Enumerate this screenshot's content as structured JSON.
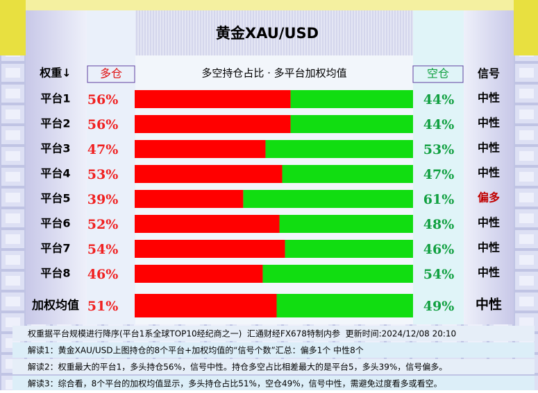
{
  "title": "黄金XAU/USD",
  "headers": {
    "weight": "权重↓",
    "subtitle": "多空持仓占比 · 多平台加权均值",
    "signal": "信号"
  },
  "chart_data": {
    "type": "bar",
    "stacked": true,
    "orientation": "horizontal",
    "categories": [
      "平台1",
      "平台2",
      "平台3",
      "平台4",
      "平台5",
      "平台6",
      "平台7",
      "平台8",
      "加权均值"
    ],
    "series": [
      {
        "name": "多仓",
        "color": "#ff0000",
        "values": [
          56,
          56,
          47,
          53,
          39,
          52,
          54,
          46,
          51
        ],
        "value_labels": [
          "56%",
          "56%",
          "47%",
          "53%",
          "39%",
          "52%",
          "54%",
          "46%",
          "51%"
        ]
      },
      {
        "name": "空仓",
        "color": "#11dd11",
        "values": [
          44,
          44,
          53,
          47,
          61,
          48,
          46,
          54,
          49
        ],
        "value_labels": [
          "44%",
          "44%",
          "53%",
          "47%",
          "61%",
          "48%",
          "46%",
          "54%",
          "49%"
        ]
      }
    ],
    "signals": [
      "中性",
      "中性",
      "中性",
      "中性",
      "偏多",
      "中性",
      "中性",
      "中性",
      "中性"
    ],
    "signal_colors": [
      "#000000",
      "#000000",
      "#000000",
      "#000000",
      "#c00000",
      "#000000",
      "#000000",
      "#000000",
      "#000000"
    ]
  },
  "notes": [
    "权重据平台规模进行降序(平台1系全球TOP10经纪商之一)  汇通财经FX678特制内参  更新时间:2024/12/08 20:10",
    "解读1：黄金XAU/USD上图持仓的8个平台+加权均值的“信号个数”汇总：偏多1个 中性8个",
    "解读2：权重最大的平台1，多头持仓56%，信号中性。持仓多空占比相差最大的是平台5，多头39%，信号偏多。",
    "解读3：综合看，8个平台的加权均值显示，多头持仓占比51%，空仓49%，信号中性，需避免过度看多或看空。"
  ]
}
